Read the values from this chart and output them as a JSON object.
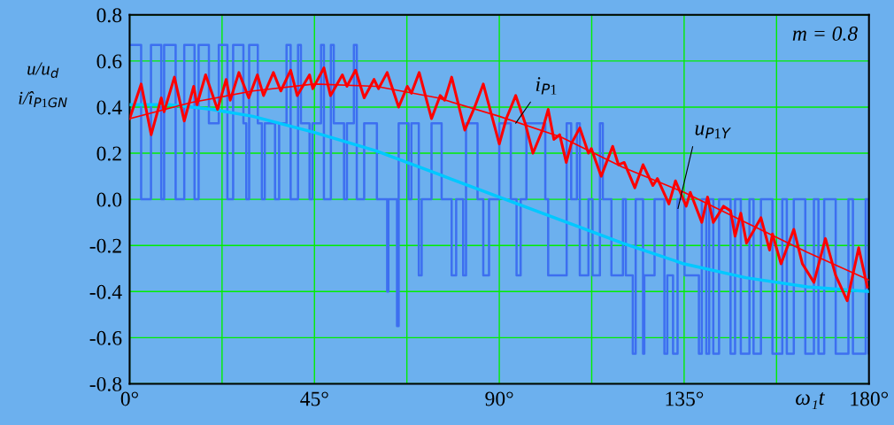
{
  "chart_data": {
    "type": "line",
    "ylabel": "u/u$_{d}$\ni/î$_{P1GN}$",
    "xlabel": "ω₁t",
    "xlim": [
      0,
      180
    ],
    "ylim": [
      -0.8,
      0.8
    ],
    "xticks": [
      {
        "value": 0,
        "label": "0°"
      },
      {
        "value": 22.5,
        "label": null
      },
      {
        "value": 45,
        "label": "45°"
      },
      {
        "value": 67.5,
        "label": null
      },
      {
        "value": 90,
        "label": "90°"
      },
      {
        "value": 112.5,
        "label": null
      },
      {
        "value": 135,
        "label": "135°"
      },
      {
        "value": 157.5,
        "label": null
      },
      {
        "value": 180,
        "label": "180°"
      }
    ],
    "yticks": [
      {
        "value": -0.8,
        "label": "-0.8"
      },
      {
        "value": -0.6,
        "label": "-0.6"
      },
      {
        "value": -0.4,
        "label": "-0.4"
      },
      {
        "value": -0.2,
        "label": "-0.2"
      },
      {
        "value": 0,
        "label": "0.0"
      },
      {
        "value": 0.2,
        "label": "0.2"
      },
      {
        "value": 0.4,
        "label": "0.4"
      },
      {
        "value": 0.6,
        "label": "0.6"
      },
      {
        "value": 0.8,
        "label": "0.8"
      }
    ],
    "grid": true,
    "marker": "none",
    "line_style": "solid",
    "series": [
      {
        "type": "step",
        "color": "#3d6ff0",
        "x": [
          0,
          2.8,
          5.2,
          7.7,
          8.4,
          11.2,
          13.3,
          15.8,
          16.8,
          19.3,
          21.7,
          23.8,
          25.2,
          27.7,
          28.4,
          29.1,
          31.2,
          32.2,
          32.9,
          35.4,
          36.4,
          38.2,
          39.2,
          41.0,
          41.7,
          43.8,
          44.5,
          46.6,
          47.3,
          49.0,
          49.7,
          52.2,
          52.9,
          54.6,
          55.3,
          57.1,
          60.2,
          62.7,
          63.0,
          65.1,
          65.5,
          67.9,
          68.6,
          70.4,
          71.1,
          73.5,
          75.96,
          78.4,
          79.5,
          81.2,
          81.9,
          84.7,
          86.1,
          87.5,
          90.0,
          92.8,
          94.2,
          95.2,
          96.6,
          101.2,
          101.9,
          106.4,
          107.5,
          108.9,
          109.6,
          111.7,
          112.7,
          114.5,
          115.2,
          117.3,
          120.1,
          120.8,
          122.5,
          123.2,
          125.0,
          125.3,
          127.8,
          130.2,
          130.9,
          132.3,
          133.4,
          135.1,
          138.6,
          139.3,
          140.4,
          141.1,
          142.1,
          143.5,
          146.3,
          147.4,
          148.8,
          150.9,
          151.9,
          153.7,
          156.5,
          158.9,
          160.0,
          161.7,
          164.5,
          166.6,
          167.7,
          169.1,
          171.9,
          175.0,
          176.1,
          179.2,
          179.9,
          180
        ],
        "values": [
          0.67,
          0,
          0.67,
          0,
          0.67,
          0,
          0.67,
          0,
          0.67,
          0.33,
          0.67,
          0,
          0.67,
          0.33,
          0,
          0.67,
          0.33,
          0,
          0.33,
          0,
          0.33,
          0.67,
          0,
          0.67,
          0.33,
          0,
          0.33,
          0.67,
          0,
          0.67,
          0.33,
          0,
          0.33,
          0.67,
          0,
          0.33,
          0,
          -0.4,
          0,
          -0.55,
          0.33,
          0,
          0.33,
          -0.33,
          0,
          0.33,
          0,
          -0.33,
          0,
          -0.33,
          0.33,
          0,
          -0.33,
          0,
          0.33,
          0,
          -0.33,
          0,
          0.33,
          0,
          -0.33,
          0.33,
          0,
          0.33,
          -0.33,
          0,
          -0.33,
          0.33,
          0,
          -0.33,
          0,
          -0.33,
          -0.67,
          0,
          -0.67,
          -0.33,
          0,
          -0.67,
          -0.33,
          -0.67,
          0,
          -0.33,
          -0.67,
          0,
          -0.67,
          0,
          -0.67,
          0,
          -0.67,
          0,
          -0.67,
          0,
          -0.67,
          0,
          -0.67,
          0,
          -0.67,
          0,
          -0.67,
          0,
          -0.67,
          0,
          -0.67,
          0,
          -0.67,
          0,
          -0.67,
          -0.67
        ]
      },
      {
        "color": "#00c8ff",
        "x": [
          0,
          10,
          20,
          30,
          45,
          60,
          75,
          90,
          105,
          120,
          135,
          150,
          165,
          180
        ],
        "values": [
          0.41,
          0.41,
          0.39,
          0.36,
          0.29,
          0.21,
          0.11,
          0.01,
          -0.09,
          -0.19,
          -0.28,
          -0.34,
          -0.38,
          -0.4
        ]
      },
      {
        "color": "#ff0000",
        "x": [
          0,
          15,
          30,
          45,
          60,
          75,
          90,
          105,
          120,
          135,
          150,
          165,
          180
        ],
        "values": [
          0.35,
          0.42,
          0.47,
          0.5,
          0.49,
          0.44,
          0.36,
          0.27,
          0.14,
          0.03,
          -0.1,
          -0.23,
          -0.35
        ]
      },
      {
        "color": "#ff0000",
        "x": [
          0,
          2.8,
          5.25,
          7.7,
          8.4,
          10.9,
          13.3,
          15.6,
          16.4,
          18.5,
          21.4,
          23.5,
          24.5,
          26.6,
          29.0,
          31.1,
          32.6,
          35.0,
          36.8,
          39.2,
          40.8,
          43.8,
          44.6,
          47.3,
          48.9,
          51.8,
          52.9,
          55.0,
          57.1,
          59.5,
          60.6,
          62.7,
          65.5,
          67.6,
          68.6,
          70.5,
          73.5,
          75.6,
          76.7,
          78.4,
          81.6,
          84.0,
          86.1,
          90.0,
          91.7,
          94.0,
          96.3,
          98.2,
          100.5,
          101.9,
          103.3,
          104.7,
          106.3,
          107.5,
          109.6,
          111.7,
          112.4,
          114.8,
          117.6,
          119.0,
          120.4,
          123.0,
          125.0,
          127.4,
          128.5,
          131.3,
          132.9,
          135.5,
          136.5,
          139.3,
          140.7,
          142.1,
          144.6,
          146.3,
          147.4,
          148.8,
          150.2,
          153.7,
          155.8,
          156.5,
          158.6,
          161.7,
          163.8,
          166.6,
          169.4,
          171.9,
          174.7,
          177.5,
          179.6
        ],
        "values": [
          0.35,
          0.5,
          0.28,
          0.44,
          0.38,
          0.53,
          0.34,
          0.49,
          0.41,
          0.54,
          0.39,
          0.52,
          0.43,
          0.55,
          0.44,
          0.54,
          0.45,
          0.55,
          0.47,
          0.56,
          0.45,
          0.54,
          0.48,
          0.57,
          0.45,
          0.54,
          0.49,
          0.56,
          0.44,
          0.52,
          0.48,
          0.55,
          0.4,
          0.49,
          0.46,
          0.55,
          0.35,
          0.45,
          0.43,
          0.53,
          0.3,
          0.4,
          0.5,
          0.24,
          0.35,
          0.45,
          0.33,
          0.2,
          0.3,
          0.39,
          0.26,
          0.28,
          0.16,
          0.24,
          0.31,
          0.2,
          0.22,
          0.1,
          0.23,
          0.15,
          0.16,
          0.05,
          0.15,
          0.06,
          0.09,
          -0.02,
          0.08,
          -0.03,
          0.03,
          -0.1,
          0.01,
          -0.1,
          -0.03,
          -0.05,
          -0.16,
          -0.06,
          -0.19,
          -0.08,
          -0.22,
          -0.15,
          -0.28,
          -0.13,
          -0.28,
          -0.36,
          -0.17,
          -0.33,
          -0.44,
          -0.21,
          -0.38
        ]
      }
    ],
    "annotations": [
      {
        "text": "i$_{P1}$",
        "x": 94,
        "y": 0.33
      },
      {
        "text": "u$_{P1Y}$",
        "x": 133.5,
        "y": -0.04
      },
      "m = 0.8"
    ]
  }
}
